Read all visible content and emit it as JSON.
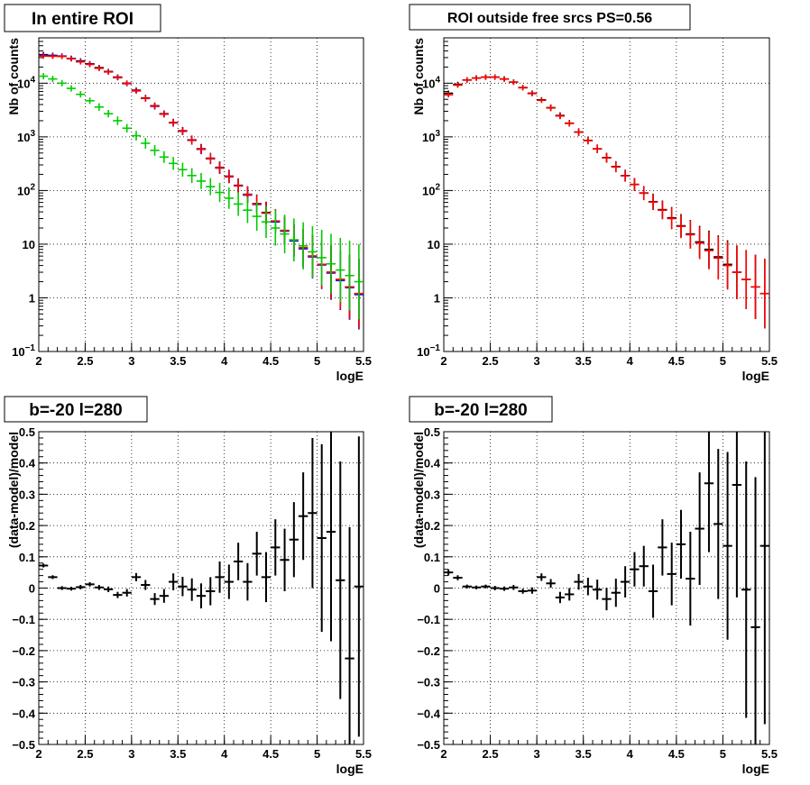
{
  "chart_data": [
    {
      "type": "scatter",
      "title": "In entire ROI",
      "xlabel": "logE",
      "ylabel": "Nb of counts",
      "xlim": [
        2,
        5.5
      ],
      "ylim": [
        0.1,
        70000
      ],
      "yscale": "log",
      "grid": true,
      "x_ticks": [
        "2",
        "2.5",
        "3",
        "3.5",
        "4",
        "4.5",
        "5",
        "5.5"
      ],
      "y_ticks": [
        {
          "base": "10",
          "exp": "−1",
          "v": 0.1
        },
        {
          "base": "1",
          "exp": "",
          "v": 1
        },
        {
          "base": "10",
          "exp": "",
          "v": 10
        },
        {
          "base": "10",
          "exp": "2",
          "v": 100
        },
        {
          "base": "10",
          "exp": "3",
          "v": 1000
        },
        {
          "base": "10",
          "exp": "4",
          "v": 10000
        }
      ],
      "x": [
        2.05,
        2.15,
        2.25,
        2.35,
        2.45,
        2.55,
        2.65,
        2.75,
        2.85,
        2.95,
        3.05,
        3.15,
        3.25,
        3.35,
        3.45,
        3.55,
        3.65,
        3.75,
        3.85,
        3.95,
        4.05,
        4.15,
        4.25,
        4.35,
        4.45,
        4.55,
        4.65,
        4.75,
        4.85,
        4.95,
        5.05,
        5.15,
        5.25,
        5.35,
        5.45
      ],
      "series": [
        {
          "color": "#000000",
          "values": [
            34000,
            33000,
            32000,
            29000,
            26000,
            23000,
            19500,
            16500,
            13000,
            10000,
            7400,
            5300,
            3800,
            2700,
            1850,
            1300,
            880,
            600,
            400,
            270,
            185,
            125,
            85,
            57,
            39,
            27,
            18,
            12,
            8.5,
            6.0,
            4.2,
            3.0,
            2.2,
            1.6,
            1.2
          ],
          "errors": [
            0.05,
            0.05,
            0.05,
            0.05,
            0.05,
            0.05,
            0.05,
            0.05,
            0.05,
            0.05,
            0.05,
            0.06,
            0.06,
            0.06,
            0.07,
            0.07,
            0.08,
            0.09,
            0.1,
            0.11,
            0.12,
            0.13,
            0.15,
            0.17,
            0.2,
            0.22,
            0.26,
            0.3,
            0.35,
            0.4,
            0.45,
            0.5,
            0.55,
            0.6,
            0.65
          ]
        },
        {
          "color": "#0000ff",
          "values": [
            33000,
            32500,
            32000,
            29000,
            25500,
            22500,
            19000,
            16300,
            12700,
            9800,
            7200,
            5200,
            3700,
            2650,
            1820,
            1270,
            860,
            585,
            390,
            262,
            180,
            122,
            82,
            55,
            38,
            26,
            17.5,
            11.5,
            8.2,
            5.8,
            4.1,
            2.9,
            2.1,
            1.55,
            1.15
          ],
          "errors": [
            0.05,
            0.05,
            0.05,
            0.05,
            0.05,
            0.05,
            0.05,
            0.05,
            0.05,
            0.05,
            0.05,
            0.06,
            0.06,
            0.06,
            0.07,
            0.07,
            0.08,
            0.09,
            0.1,
            0.11,
            0.12,
            0.13,
            0.15,
            0.17,
            0.2,
            0.22,
            0.26,
            0.3,
            0.35,
            0.4,
            0.45,
            0.5,
            0.55,
            0.6,
            0.65
          ]
        },
        {
          "color": "#ff0000",
          "values": [
            32000,
            31800,
            31500,
            28500,
            25000,
            22500,
            19000,
            16200,
            12800,
            9900,
            7200,
            5200,
            3750,
            2650,
            1830,
            1280,
            870,
            590,
            395,
            265,
            182,
            123,
            84,
            56,
            38,
            27,
            18,
            12,
            8.6,
            6.0,
            4.2,
            3.0,
            2.2,
            1.6,
            1.2
          ],
          "errors": [
            0.05,
            0.05,
            0.05,
            0.05,
            0.05,
            0.05,
            0.05,
            0.05,
            0.05,
            0.05,
            0.05,
            0.06,
            0.06,
            0.06,
            0.07,
            0.07,
            0.08,
            0.09,
            0.1,
            0.11,
            0.12,
            0.13,
            0.15,
            0.17,
            0.2,
            0.22,
            0.26,
            0.3,
            0.35,
            0.4,
            0.45,
            0.5,
            0.55,
            0.6,
            0.65
          ]
        },
        {
          "color": "#00cc00",
          "values": [
            13500,
            12000,
            10000,
            8000,
            6200,
            4700,
            3600,
            2700,
            2000,
            1450,
            1050,
            760,
            560,
            420,
            320,
            245,
            190,
            150,
            118,
            92,
            72,
            56,
            43,
            33,
            26,
            20,
            15.5,
            12,
            9.3,
            7.2,
            5.6,
            4.3,
            3.3,
            2.6,
            2.0
          ],
          "errors": [
            0.06,
            0.06,
            0.06,
            0.06,
            0.06,
            0.06,
            0.07,
            0.07,
            0.08,
            0.08,
            0.09,
            0.1,
            0.1,
            0.11,
            0.12,
            0.13,
            0.14,
            0.15,
            0.16,
            0.18,
            0.2,
            0.22,
            0.24,
            0.27,
            0.3,
            0.33,
            0.36,
            0.4,
            0.44,
            0.48,
            0.52,
            0.56,
            0.6,
            0.65,
            0.7
          ]
        }
      ]
    },
    {
      "type": "scatter",
      "title": "ROI outside free srcs PS=0.56",
      "xlabel": "logE",
      "ylabel": "Nb of counts",
      "xlim": [
        2,
        5.5
      ],
      "ylim": [
        0.1,
        70000
      ],
      "yscale": "log",
      "grid": true,
      "x_ticks": [
        "2",
        "2.5",
        "3",
        "3.5",
        "4",
        "4.5",
        "5",
        "5.5"
      ],
      "y_ticks": [
        {
          "base": "10",
          "exp": "−1",
          "v": 0.1
        },
        {
          "base": "1",
          "exp": "",
          "v": 1
        },
        {
          "base": "10",
          "exp": "",
          "v": 10
        },
        {
          "base": "10",
          "exp": "2",
          "v": 100
        },
        {
          "base": "10",
          "exp": "3",
          "v": 1000
        },
        {
          "base": "10",
          "exp": "4",
          "v": 10000
        }
      ],
      "x": [
        2.05,
        2.15,
        2.25,
        2.35,
        2.45,
        2.55,
        2.65,
        2.75,
        2.85,
        2.95,
        3.05,
        3.15,
        3.25,
        3.35,
        3.45,
        3.55,
        3.65,
        3.75,
        3.85,
        3.95,
        4.05,
        4.15,
        4.25,
        4.35,
        4.45,
        4.55,
        4.65,
        4.75,
        4.85,
        4.95,
        5.05,
        5.15,
        5.25,
        5.35,
        5.45
      ],
      "series": [
        {
          "color": "#000000",
          "values": [
            6500,
            9500,
            11500,
            12500,
            13000,
            13000,
            12000,
            10500,
            8300,
            6500,
            4900,
            3500,
            2500,
            1800,
            1230,
            860,
            600,
            410,
            280,
            190,
            130,
            90,
            62,
            44,
            31,
            22,
            15.5,
            11,
            8,
            5.8,
            4.2,
            3.0,
            2.2,
            1.6,
            1.2
          ],
          "errors": [
            0.05,
            0.05,
            0.05,
            0.05,
            0.05,
            0.05,
            0.05,
            0.05,
            0.05,
            0.05,
            0.05,
            0.06,
            0.06,
            0.06,
            0.07,
            0.07,
            0.08,
            0.09,
            0.1,
            0.11,
            0.12,
            0.13,
            0.15,
            0.17,
            0.2,
            0.22,
            0.26,
            0.3,
            0.35,
            0.4,
            0.45,
            0.5,
            0.55,
            0.6,
            0.65
          ]
        },
        {
          "color": "#ff0000",
          "values": [
            6100,
            9200,
            11400,
            12400,
            12900,
            12900,
            11900,
            10400,
            8200,
            6400,
            4800,
            3450,
            2450,
            1780,
            1220,
            850,
            595,
            405,
            275,
            188,
            129,
            89,
            61,
            43,
            30,
            21.5,
            15,
            10.5,
            7.6,
            5.5,
            4.0,
            3.0,
            2.2,
            1.6,
            1.2
          ],
          "errors": [
            0.05,
            0.05,
            0.05,
            0.05,
            0.05,
            0.05,
            0.05,
            0.05,
            0.05,
            0.05,
            0.05,
            0.06,
            0.06,
            0.06,
            0.07,
            0.07,
            0.08,
            0.09,
            0.1,
            0.11,
            0.12,
            0.13,
            0.15,
            0.17,
            0.2,
            0.22,
            0.26,
            0.3,
            0.35,
            0.4,
            0.45,
            0.5,
            0.55,
            0.6,
            0.65
          ]
        }
      ]
    },
    {
      "type": "scatter",
      "title": "b=-20 l=280",
      "xlabel": "logE",
      "ylabel": "(data-model)/model",
      "xlim": [
        2,
        5.5
      ],
      "ylim": [
        -0.5,
        0.5
      ],
      "grid": true,
      "x_ticks": [
        "2",
        "2.5",
        "3",
        "3.5",
        "4",
        "4.5",
        "5",
        "5.5"
      ],
      "y_ticks": [
        "−0.5",
        "−0.4",
        "−0.3",
        "−0.2",
        "−0.1",
        "0",
        "0.1",
        "0.2",
        "0.3",
        "0.4",
        "0.5"
      ],
      "x": [
        2.05,
        2.15,
        2.25,
        2.35,
        2.45,
        2.55,
        2.65,
        2.75,
        2.85,
        2.95,
        3.05,
        3.15,
        3.25,
        3.35,
        3.45,
        3.55,
        3.65,
        3.75,
        3.85,
        3.95,
        4.05,
        4.15,
        4.25,
        4.35,
        4.45,
        4.55,
        4.65,
        4.75,
        4.85,
        4.95,
        5.05,
        5.15,
        5.25,
        5.35,
        5.45
      ],
      "series": [
        {
          "color": "#000000",
          "values": [
            0.072,
            0.035,
            0.0,
            -0.002,
            0.003,
            0.012,
            0.002,
            -0.004,
            -0.022,
            -0.015,
            0.035,
            0.01,
            -0.035,
            -0.025,
            0.02,
            0.005,
            -0.005,
            -0.025,
            -0.01,
            0.035,
            0.02,
            0.085,
            0.02,
            0.11,
            0.035,
            0.13,
            0.09,
            0.155,
            0.23,
            0.24,
            0.16,
            0.18,
            0.025,
            -0.225,
            0.005
          ],
          "errors": [
            0.006,
            0.006,
            0.006,
            0.006,
            0.007,
            0.007,
            0.008,
            0.009,
            0.01,
            0.012,
            0.013,
            0.016,
            0.019,
            0.022,
            0.027,
            0.031,
            0.036,
            0.04,
            0.045,
            0.05,
            0.055,
            0.06,
            0.06,
            0.07,
            0.08,
            0.09,
            0.1,
            0.12,
            0.14,
            0.24,
            0.3,
            0.35,
            0.38,
            0.42,
            0.48
          ]
        }
      ]
    },
    {
      "type": "scatter",
      "title": "b=-20 l=280",
      "xlabel": "logE",
      "ylabel": "(data-model)/model",
      "xlim": [
        2,
        5.5
      ],
      "ylim": [
        -0.5,
        0.5
      ],
      "grid": true,
      "x_ticks": [
        "2",
        "2.5",
        "3",
        "3.5",
        "4",
        "4.5",
        "5",
        "5.5"
      ],
      "y_ticks": [
        "−0.5",
        "−0.4",
        "−0.3",
        "−0.2",
        "−0.1",
        "0",
        "0.1",
        "0.2",
        "0.3",
        "0.4",
        "0.5"
      ],
      "x": [
        2.05,
        2.15,
        2.25,
        2.35,
        2.45,
        2.55,
        2.65,
        2.75,
        2.85,
        2.95,
        3.05,
        3.15,
        3.25,
        3.35,
        3.45,
        3.55,
        3.65,
        3.75,
        3.85,
        3.95,
        4.05,
        4.15,
        4.25,
        4.35,
        4.45,
        4.55,
        4.65,
        4.75,
        4.85,
        4.95,
        5.05,
        5.15,
        5.25,
        5.35,
        5.45
      ],
      "series": [
        {
          "color": "#000000",
          "values": [
            0.05,
            0.033,
            0.005,
            0.002,
            0.005,
            0.0,
            -0.002,
            0.002,
            -0.01,
            -0.008,
            0.035,
            0.015,
            -0.03,
            -0.02,
            0.02,
            0.005,
            -0.005,
            -0.035,
            -0.015,
            0.02,
            0.06,
            0.07,
            -0.01,
            0.13,
            0.045,
            0.14,
            0.03,
            0.19,
            0.335,
            0.205,
            0.135,
            0.33,
            -0.005,
            -0.125,
            0.135
          ],
          "errors": [
            0.01,
            0.008,
            0.006,
            0.006,
            0.006,
            0.007,
            0.007,
            0.008,
            0.008,
            0.01,
            0.012,
            0.014,
            0.018,
            0.02,
            0.025,
            0.028,
            0.032,
            0.036,
            0.045,
            0.05,
            0.055,
            0.065,
            0.085,
            0.09,
            0.1,
            0.11,
            0.15,
            0.18,
            0.22,
            0.24,
            0.3,
            0.36,
            0.41,
            0.48,
            0.57
          ]
        }
      ]
    }
  ]
}
